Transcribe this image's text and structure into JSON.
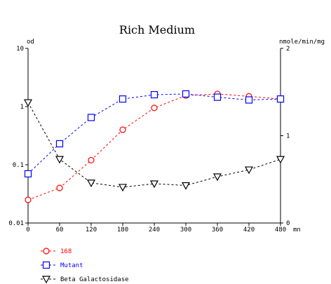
{
  "chart_data": {
    "type": "line",
    "title": "Rich Medium",
    "x": [
      0,
      60,
      120,
      180,
      240,
      300,
      360,
      420,
      480
    ],
    "xlabel": "mn",
    "xlim": [
      0,
      480
    ],
    "x_ticks": [
      "0",
      "60",
      "120",
      "180",
      "240",
      "300",
      "360",
      "420",
      "480"
    ],
    "left_axis": {
      "label": "od",
      "scale": "log",
      "ylim": [
        0.01,
        10
      ],
      "ticks": [
        "0.01",
        "0.1",
        "1",
        "10"
      ]
    },
    "right_axis": {
      "label": "nmole/min/mg",
      "scale": "linear",
      "ylim": [
        0,
        2
      ],
      "ticks": [
        "0",
        "1",
        "2"
      ]
    },
    "grid": false,
    "legend_position": "bottom-left",
    "series": [
      {
        "name": "168",
        "axis": "left",
        "marker": "circle",
        "color": "#ff0000",
        "values": [
          0.025,
          0.04,
          0.12,
          0.4,
          0.95,
          1.55,
          1.65,
          1.5,
          1.35
        ]
      },
      {
        "name": "Mutant",
        "axis": "left",
        "marker": "square",
        "color": "#0000ff",
        "values": [
          0.07,
          0.23,
          0.65,
          1.35,
          1.6,
          1.65,
          1.45,
          1.3,
          1.35
        ]
      },
      {
        "name": "Beta Galactosidase",
        "axis": "right",
        "marker": "triangle-down",
        "color": "#000000",
        "values": [
          1.38,
          0.73,
          0.46,
          0.41,
          0.45,
          0.43,
          0.53,
          0.61,
          0.73
        ]
      }
    ]
  }
}
